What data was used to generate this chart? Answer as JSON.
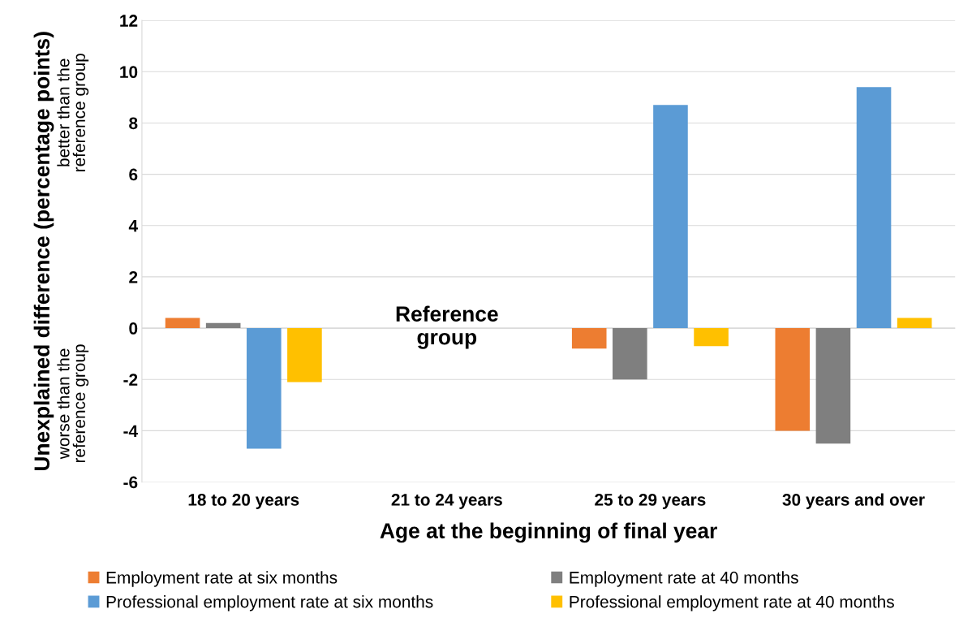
{
  "chart_data": {
    "type": "bar",
    "xlabel": "Age at the beginning of final year",
    "ylabel": "Unexplained difference (percentage points)",
    "categories": [
      "18 to 20 years",
      "21 to 24 years",
      "25 to 29 years",
      "30 years and over"
    ],
    "series": [
      {
        "name": "Employment rate at six months",
        "color": "#ed7d31",
        "values": [
          0.4,
          null,
          -0.8,
          -4.0
        ]
      },
      {
        "name": "Employment rate at 40 months",
        "color": "#7f7f7f",
        "values": [
          0.2,
          null,
          -2.0,
          -4.5
        ]
      },
      {
        "name": "Professional employment rate at six months",
        "color": "#5b9bd5",
        "values": [
          -4.7,
          null,
          8.7,
          9.4
        ]
      },
      {
        "name": "Professional employment rate at 40 months",
        "color": "#ffc000",
        "values": [
          -2.1,
          null,
          -0.7,
          0.4
        ]
      }
    ],
    "ylim": [
      -6,
      12
    ],
    "yticks": [
      -6,
      -4,
      -2,
      0,
      2,
      4,
      6,
      8,
      10,
      12
    ],
    "grid": "y",
    "legend": "bottom",
    "annotations": [
      "better than the\nreference group",
      "worse than the\nreference group",
      "Reference\ngroup"
    ]
  }
}
